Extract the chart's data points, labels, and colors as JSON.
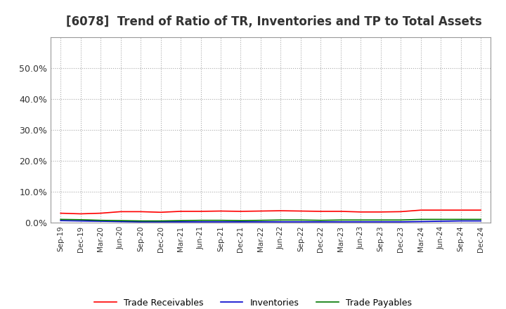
{
  "title": "[6078]  Trend of Ratio of TR, Inventories and TP to Total Assets",
  "x_labels": [
    "Sep-19",
    "Dec-19",
    "Mar-20",
    "Jun-20",
    "Sep-20",
    "Dec-20",
    "Mar-21",
    "Jun-21",
    "Sep-21",
    "Dec-21",
    "Mar-22",
    "Jun-22",
    "Sep-22",
    "Dec-22",
    "Mar-23",
    "Jun-23",
    "Sep-23",
    "Dec-23",
    "Mar-24",
    "Jun-24",
    "Sep-24",
    "Dec-24"
  ],
  "trade_receivables": [
    0.03,
    0.028,
    0.03,
    0.035,
    0.035,
    0.033,
    0.036,
    0.036,
    0.037,
    0.036,
    0.037,
    0.038,
    0.037,
    0.036,
    0.036,
    0.034,
    0.034,
    0.035,
    0.04,
    0.04,
    0.04,
    0.04
  ],
  "inventories": [
    0.006,
    0.005,
    0.004,
    0.003,
    0.002,
    0.002,
    0.002,
    0.002,
    0.002,
    0.002,
    0.002,
    0.002,
    0.002,
    0.002,
    0.002,
    0.002,
    0.002,
    0.002,
    0.003,
    0.004,
    0.005,
    0.005
  ],
  "trade_payables": [
    0.01,
    0.009,
    0.007,
    0.006,
    0.005,
    0.005,
    0.006,
    0.007,
    0.007,
    0.006,
    0.007,
    0.008,
    0.008,
    0.007,
    0.008,
    0.008,
    0.008,
    0.008,
    0.01,
    0.01,
    0.01,
    0.01
  ],
  "tr_color": "#ff0000",
  "inv_color": "#0000cc",
  "tp_color": "#007700",
  "ylim": [
    0,
    0.6
  ],
  "yticks": [
    0.0,
    0.1,
    0.2,
    0.3,
    0.4,
    0.5
  ],
  "background_color": "#ffffff",
  "grid_color": "#aaaaaa",
  "title_fontsize": 12,
  "legend_labels": [
    "Trade Receivables",
    "Inventories",
    "Trade Payables"
  ]
}
